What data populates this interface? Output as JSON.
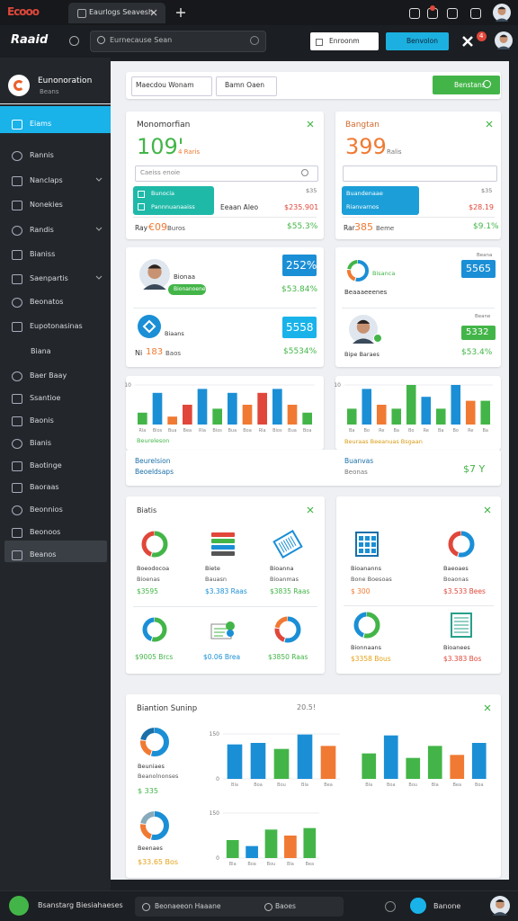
{
  "browser": {
    "logo": "Ecooo",
    "tab": "Eaurlogs Seavesh",
    "address": "Eurnecause Sean",
    "btn1": "Enroonm",
    "btn2": "Benvolon",
    "badge": "4"
  },
  "app": {
    "logo": "Raaid"
  },
  "sidebar": {
    "name": "Eunonoration",
    "role": "Beans",
    "items": [
      "Eiams",
      "Rannis",
      "Nanclaps",
      "Nonekies",
      "Randis",
      "Bianiss",
      "Saenpartis",
      "Beonatos",
      "Eupotonasinas",
      "Biana",
      "Baer Baay",
      "Ssantioe",
      "Baonis",
      "Bianis",
      "Baotinge",
      "Baoraas",
      "Beonnios",
      "Beonoos",
      "Beanos"
    ]
  },
  "toolbar": {
    "filter1": "Maecdou Wonam",
    "filter2": "Bamn Oaen",
    "action": "Benstans"
  },
  "cards": {
    "c1": {
      "title": "Monomorfian",
      "value": "109'",
      "unit": "4 Raris",
      "search": "Caeiss enoie",
      "box1": "Bunocia",
      "box2": "Pannnuanaaiss",
      "note": "Eeaan Aleo",
      "tag": "$35",
      "amount": "$235.901",
      "foot1": "Ray",
      "foot2": "€09",
      "foot3": "Buros",
      "pct": "$55.3%"
    },
    "c2": {
      "title": "Bangtan",
      "value": "399",
      "unit": "Ralis",
      "box1": "Buandenaae",
      "box2": "Rianvarnos",
      "tag": "$35",
      "amount": "$28.19",
      "foot1": "Rar",
      "foot2": "385",
      "foot3": "Beme",
      "pct": "$9.1%"
    },
    "c3": {
      "name": "Bionaa",
      "pill": "Bionanoenes",
      "badge1": "252%",
      "pct1": "$53.84%",
      "label2": "Biaans",
      "badge2": "5558",
      "pct2": "$5534%",
      "foot1": "Ni",
      "foot2": "183",
      "foot3": "Baos"
    },
    "c4": {
      "label1": "Bisanca",
      "sub1": "Beaaaeeenes",
      "note1": "Beana",
      "badge1": "5565",
      "note2": "Beane",
      "badge2": "5332",
      "pct2": "$53.4%",
      "label2": "Bipe Baraes"
    }
  },
  "strip": {
    "cap_left": "Beureleson",
    "cap_right": "Beuraas Beeanuas Bsgaan",
    "l1": "Beurelsion",
    "l2": "Beoeldsaps",
    "r1": "Buanvas",
    "r2": "Beonas",
    "value": "$7 Y"
  },
  "charts": [
    {
      "ylim": [
        0,
        10
      ],
      "yticks": [
        10
      ],
      "categories": [
        "Rla",
        "Bios",
        "Bua",
        "Bea",
        "Rla",
        "Bios",
        "Bua",
        "Boa",
        "Rla",
        "Bios",
        "Bua",
        "Boa"
      ],
      "values": [
        3,
        8,
        2,
        5,
        9,
        4,
        8,
        5,
        8,
        9,
        5,
        3
      ],
      "colors": [
        "#43b548",
        "#1b8fd6",
        "#f07a33",
        "#e0473a",
        "#1b8fd6",
        "#43b548",
        "#1b8fd6",
        "#f07a33",
        "#e0473a",
        "#1b8fd6",
        "#f07a33",
        "#43b548"
      ]
    },
    {
      "ylim": [
        0,
        10
      ],
      "yticks": [
        10
      ],
      "categories": [
        "Ba",
        "Bo",
        "Re",
        "Ba",
        "Bo",
        "Re",
        "Ba",
        "Bo",
        "Re",
        "Ba"
      ],
      "values": [
        4,
        9,
        5,
        4,
        10,
        7,
        4,
        10,
        6,
        6
      ],
      "colors": [
        "#43b548",
        "#1b8fd6",
        "#f07a33",
        "#43b548",
        "#43b548",
        "#1b8fd6",
        "#43b548",
        "#1b8fd6",
        "#f07a33",
        "#43b548"
      ]
    },
    {
      "ylim": [
        0,
        150
      ],
      "yticks": [
        0,
        150
      ],
      "categories": [
        "Bla",
        "Boa",
        "Bou",
        "Bla",
        "Bea"
      ],
      "values": [
        115,
        120,
        100,
        148,
        110
      ],
      "colors": [
        "#1b8fd6",
        "#1b8fd6",
        "#43b548",
        "#1b8fd6",
        "#f07a33"
      ]
    },
    {
      "ylim": [
        0,
        150
      ],
      "categories": [
        "Bla",
        "Boa",
        "Bou",
        "Bla",
        "Bea",
        "Boa"
      ],
      "values": [
        85,
        145,
        70,
        110,
        80,
        120
      ],
      "colors": [
        "#43b548",
        "#1b8fd6",
        "#43b548",
        "#43b548",
        "#f07a33",
        "#1b8fd6"
      ]
    },
    {
      "ylim": [
        0,
        150
      ],
      "yticks": [
        0,
        150
      ],
      "categories": [
        "Bla",
        "Boa",
        "Bou",
        "Bla",
        "Bea"
      ],
      "values": [
        60,
        40,
        95,
        75,
        100
      ],
      "colors": [
        "#43b548",
        "#1b8fd6",
        "#43b548",
        "#f07a33",
        "#43b548"
      ]
    }
  ],
  "list_left": {
    "title": "Biatis",
    "items": [
      {
        "label": "Boeodocoa",
        "sub": "Bioenas",
        "value": "$3595"
      },
      {
        "label": "Biete",
        "sub": "Bauasn",
        "value": "$3.383 Raas"
      },
      {
        "label": "Bioanna",
        "sub": "Bioanmas",
        "value": "$3835 Raas"
      },
      {
        "value": "$9005 Brcs"
      },
      {
        "value": "$0.06 Brea"
      },
      {
        "value": "$3850 Raas"
      }
    ]
  },
  "list_right": {
    "items": [
      {
        "label": "Bioananns",
        "sub": "Bone Boesoas",
        "value": "$ 300"
      },
      {
        "label": "Baeoaes",
        "sub": "Boaonas",
        "value": "$3.533 Bees"
      },
      {
        "label": "Bionnaans",
        "value": "$3358 Bous"
      },
      {
        "label": "Bioanees",
        "value": "$3.383 Bos"
      }
    ]
  },
  "summary": {
    "title": "Biantion Suninp",
    "stat": "20.5!",
    "d1_label": "Beuniaes",
    "d1_sub": "Beanolnonses",
    "d1_value": "$ 335",
    "d2_label": "Beenaes",
    "d2_value": "$33.65 Bos"
  },
  "taskbar": {
    "app": "Bsanstarg Biesiahaeses",
    "search": "Beonaeeon Haaane",
    "tag": "Baoes",
    "user": "Banone"
  }
}
